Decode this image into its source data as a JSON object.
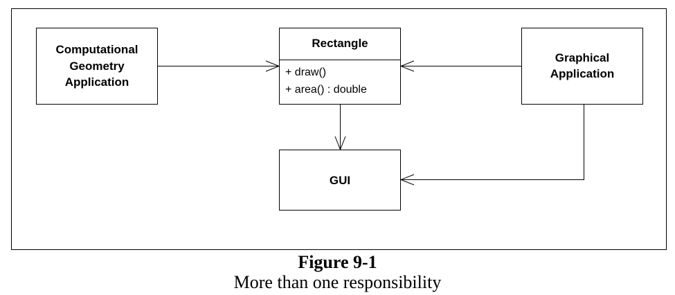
{
  "diagram": {
    "comp_geo": {
      "lines": [
        "Computational",
        "Geometry",
        "Application"
      ]
    },
    "rectangle": {
      "name": "Rectangle",
      "ops": [
        "+ draw()",
        "+ area() : double"
      ]
    },
    "graphical": {
      "lines": [
        "Graphical",
        "Application"
      ]
    },
    "gui": {
      "name": "GUI"
    }
  },
  "caption": {
    "title": "Figure 9-1",
    "subtitle": "More than one responsibility"
  }
}
